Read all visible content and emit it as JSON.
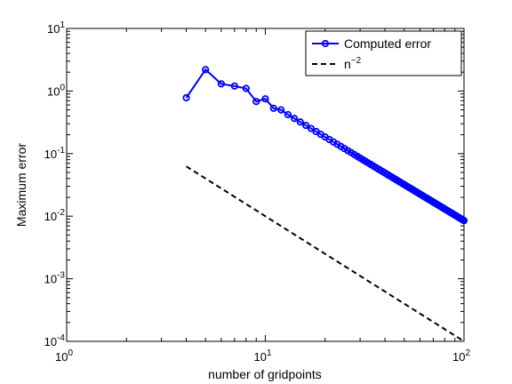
{
  "chart_data": {
    "type": "line",
    "xscale": "log",
    "yscale": "log",
    "xlabel": "number of gridpoints",
    "ylabel": "Maximum error",
    "xlim": [
      1,
      100
    ],
    "ylim": [
      0.0001,
      10
    ],
    "x_tick_labels": [
      {
        "base": "10",
        "exp": "0"
      },
      {
        "base": "10",
        "exp": "1"
      },
      {
        "base": "10",
        "exp": "2"
      }
    ],
    "y_tick_labels": [
      {
        "base": "10",
        "exp": "-4"
      },
      {
        "base": "10",
        "exp": "-3"
      },
      {
        "base": "10",
        "exp": "-2"
      },
      {
        "base": "10",
        "exp": "-1"
      },
      {
        "base": "10",
        "exp": "0"
      },
      {
        "base": "10",
        "exp": "1"
      }
    ],
    "legend_position": "top-right",
    "legend": [
      {
        "label": "Computed error",
        "style": "solid-circle"
      },
      {
        "label_base": "n",
        "label_exp": "−2",
        "style": "dashed"
      }
    ],
    "series": [
      {
        "name": "Computed error",
        "color": "#0000ff",
        "line": "solid",
        "marker": "circle",
        "x_start": 4,
        "x_end": 100,
        "initial_points": [
          [
            4,
            0.78
          ],
          [
            5,
            2.2
          ],
          [
            6,
            1.3
          ],
          [
            7,
            1.2
          ],
          [
            8,
            1.1
          ],
          [
            9,
            0.68
          ],
          [
            10,
            0.75
          ],
          [
            11,
            0.53
          ],
          [
            12,
            0.5
          ]
        ],
        "tail_points": [
          [
            13,
            0.42
          ],
          [
            100,
            0.0085
          ]
        ]
      },
      {
        "name": "n^-2",
        "color": "#000000",
        "line": "dashed",
        "marker": "none",
        "points": [
          [
            4,
            0.0625
          ],
          [
            100,
            0.0001
          ]
        ]
      }
    ],
    "grid": false
  }
}
